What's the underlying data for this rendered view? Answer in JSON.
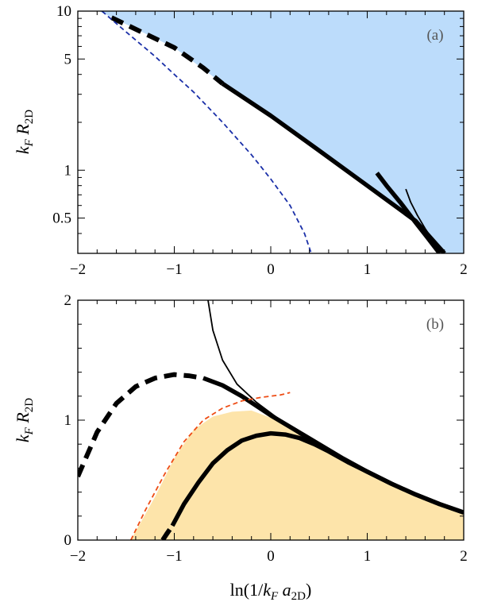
{
  "chart_data": [
    {
      "type": "line",
      "panel_label": "(a)",
      "ylabel": "k_F R_2D",
      "xlim": [
        -2,
        2
      ],
      "ylim": [
        0.3,
        10
      ],
      "yscale": "log",
      "grid": false,
      "x_ticks": [
        -2,
        -1,
        0,
        1,
        2
      ],
      "y_ticks": [
        0.5,
        1,
        5,
        10
      ],
      "y_tick_labels": [
        "0.5",
        "1",
        "5",
        "10"
      ],
      "colors": {
        "region_fill": "#bcdcfb",
        "blue_dashed": "#1a2fa8",
        "black": "#000000"
      },
      "region": {
        "boundary": [
          [
            -1.78,
            10
          ],
          [
            -1.0,
            5.9
          ],
          [
            -0.5,
            3.5
          ],
          [
            0,
            2.2
          ],
          [
            0.5,
            1.33
          ],
          [
            1.0,
            0.8
          ],
          [
            1.5,
            0.48
          ],
          [
            1.8,
            0.3
          ],
          [
            2,
            0.3
          ],
          [
            2,
            10
          ]
        ]
      },
      "series": [
        {
          "style": "thick-dashed",
          "points": [
            [
              -1.65,
              9.1
            ],
            [
              -1.3,
              7.2
            ],
            [
              -1.0,
              5.9
            ],
            [
              -0.7,
              4.4
            ],
            [
              -0.5,
              3.5
            ]
          ]
        },
        {
          "style": "thick-solid",
          "points": [
            [
              -0.5,
              3.5
            ],
            [
              0,
              2.2
            ],
            [
              0.5,
              1.33
            ],
            [
              1.0,
              0.8
            ],
            [
              1.5,
              0.48
            ],
            [
              1.8,
              0.3
            ]
          ]
        },
        {
          "style": "thick-solid",
          "points": [
            [
              1.1,
              0.96
            ],
            [
              1.2,
              0.8
            ],
            [
              1.35,
              0.62
            ],
            [
              1.5,
              0.47
            ],
            [
              1.62,
              0.38
            ],
            [
              1.75,
              0.3
            ]
          ]
        },
        {
          "style": "thin-solid",
          "points": [
            [
              1.4,
              0.76
            ],
            [
              1.45,
              0.63
            ],
            [
              1.52,
              0.52
            ],
            [
              1.6,
              0.43
            ],
            [
              1.7,
              0.35
            ],
            [
              1.8,
              0.3
            ]
          ]
        },
        {
          "style": "blue-dashed",
          "points": [
            [
              -1.75,
              10
            ],
            [
              -1.5,
              7.4
            ],
            [
              -1.2,
              5.2
            ],
            [
              -1.0,
              4.0
            ],
            [
              -0.8,
              3.1
            ],
            [
              -0.5,
              2.0
            ],
            [
              -0.2,
              1.25
            ],
            [
              0,
              0.88
            ],
            [
              0.2,
              0.6
            ],
            [
              0.35,
              0.4
            ],
            [
              0.42,
              0.3
            ]
          ]
        }
      ]
    },
    {
      "type": "line",
      "panel_label": "(b)",
      "xlabel": "ln(1/k_F a_2D)",
      "ylabel": "k_F R_2D",
      "xlim": [
        -2,
        2
      ],
      "ylim": [
        0,
        2
      ],
      "yscale": "linear",
      "grid": false,
      "x_ticks": [
        -2,
        -1,
        0,
        1,
        2
      ],
      "x_tick_labels": [
        "−2",
        "−1",
        "0",
        "1",
        "2"
      ],
      "y_ticks": [
        0,
        1,
        2
      ],
      "y_tick_labels": [
        "0",
        "1",
        "2"
      ],
      "colors": {
        "region_fill": "#fde4aa",
        "orange_dashed": "#ee4c14",
        "black": "#000000"
      },
      "region": {
        "boundary": [
          [
            -1.45,
            0
          ],
          [
            -1.2,
            0.36
          ],
          [
            -1.0,
            0.68
          ],
          [
            -0.8,
            0.92
          ],
          [
            -0.6,
            1.03
          ],
          [
            -0.4,
            1.07
          ],
          [
            -0.2,
            1.08
          ],
          [
            0,
            1.02
          ],
          [
            0.25,
            0.92
          ],
          [
            0.5,
            0.8
          ],
          [
            0.75,
            0.68
          ],
          [
            1.0,
            0.57
          ],
          [
            1.25,
            0.47
          ],
          [
            1.5,
            0.38
          ],
          [
            1.75,
            0.3
          ],
          [
            2,
            0.23
          ],
          [
            2,
            0
          ]
        ]
      },
      "series": [
        {
          "style": "thick-dashed",
          "points": [
            [
              -2,
              0.53
            ],
            [
              -1.8,
              0.9
            ],
            [
              -1.6,
              1.14
            ],
            [
              -1.4,
              1.28
            ],
            [
              -1.2,
              1.35
            ],
            [
              -1.0,
              1.38
            ],
            [
              -0.85,
              1.37
            ],
            [
              -0.7,
              1.35
            ]
          ]
        },
        {
          "style": "thick-solid",
          "points": [
            [
              -0.7,
              1.35
            ],
            [
              -0.5,
              1.29
            ],
            [
              -0.3,
              1.2
            ],
            [
              0,
              1.04
            ],
            [
              0.25,
              0.92
            ],
            [
              0.5,
              0.8
            ],
            [
              0.75,
              0.68
            ],
            [
              1.0,
              0.57
            ],
            [
              1.25,
              0.47
            ],
            [
              1.5,
              0.38
            ],
            [
              1.75,
              0.3
            ],
            [
              2,
              0.23
            ]
          ]
        },
        {
          "style": "thin-solid",
          "points": [
            [
              -0.65,
              2.0
            ],
            [
              -0.6,
              1.75
            ],
            [
              -0.5,
              1.5
            ],
            [
              -0.35,
              1.3
            ],
            [
              -0.15,
              1.15
            ],
            [
              0.1,
              1.0
            ],
            [
              0.3,
              0.88
            ],
            [
              0.5,
              0.78
            ],
            [
              0.7,
              0.7
            ]
          ]
        },
        {
          "style": "orange-dashed",
          "points": [
            [
              -1.45,
              0
            ],
            [
              -1.3,
              0.25
            ],
            [
              -1.1,
              0.55
            ],
            [
              -0.9,
              0.82
            ],
            [
              -0.7,
              1.0
            ],
            [
              -0.5,
              1.1
            ],
            [
              -0.3,
              1.16
            ],
            [
              -0.1,
              1.19
            ],
            [
              0.1,
              1.21
            ],
            [
              0.2,
              1.23
            ]
          ]
        },
        {
          "style": "thick-dashed",
          "points": [
            [
              -1.12,
              0
            ],
            [
              -1.08,
              0.05
            ],
            [
              -1.02,
              0.12
            ]
          ]
        },
        {
          "style": "thick-solid",
          "points": [
            [
              -1.02,
              0.12
            ],
            [
              -0.9,
              0.3
            ],
            [
              -0.75,
              0.48
            ],
            [
              -0.6,
              0.64
            ],
            [
              -0.45,
              0.75
            ],
            [
              -0.3,
              0.83
            ],
            [
              -0.15,
              0.87
            ],
            [
              0,
              0.89
            ],
            [
              0.15,
              0.88
            ],
            [
              0.3,
              0.85
            ],
            [
              0.45,
              0.8
            ],
            [
              0.6,
              0.74
            ],
            [
              0.8,
              0.65
            ],
            [
              1.0,
              0.57
            ],
            [
              1.25,
              0.47
            ],
            [
              1.5,
              0.38
            ],
            [
              1.75,
              0.3
            ],
            [
              2,
              0.23
            ]
          ]
        }
      ]
    }
  ]
}
